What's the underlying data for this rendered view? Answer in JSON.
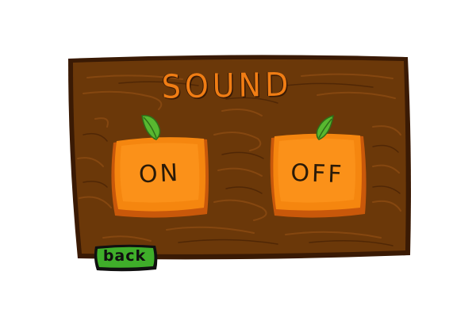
{
  "sound_menu": {
    "title": "SOUND",
    "on_label": "ON",
    "off_label": "OFF",
    "back_label": "back"
  },
  "colors": {
    "wood": "#6b3809",
    "wood_dark": "#3a1a04",
    "orange": "#f5860f",
    "orange_light": "#ff9a1f",
    "leaf": "#58b830",
    "back_green": "#3fae2a",
    "title": "#f07d14"
  },
  "icons": {
    "on_leaf": "leaf-icon",
    "off_leaf": "leaf-icon"
  }
}
